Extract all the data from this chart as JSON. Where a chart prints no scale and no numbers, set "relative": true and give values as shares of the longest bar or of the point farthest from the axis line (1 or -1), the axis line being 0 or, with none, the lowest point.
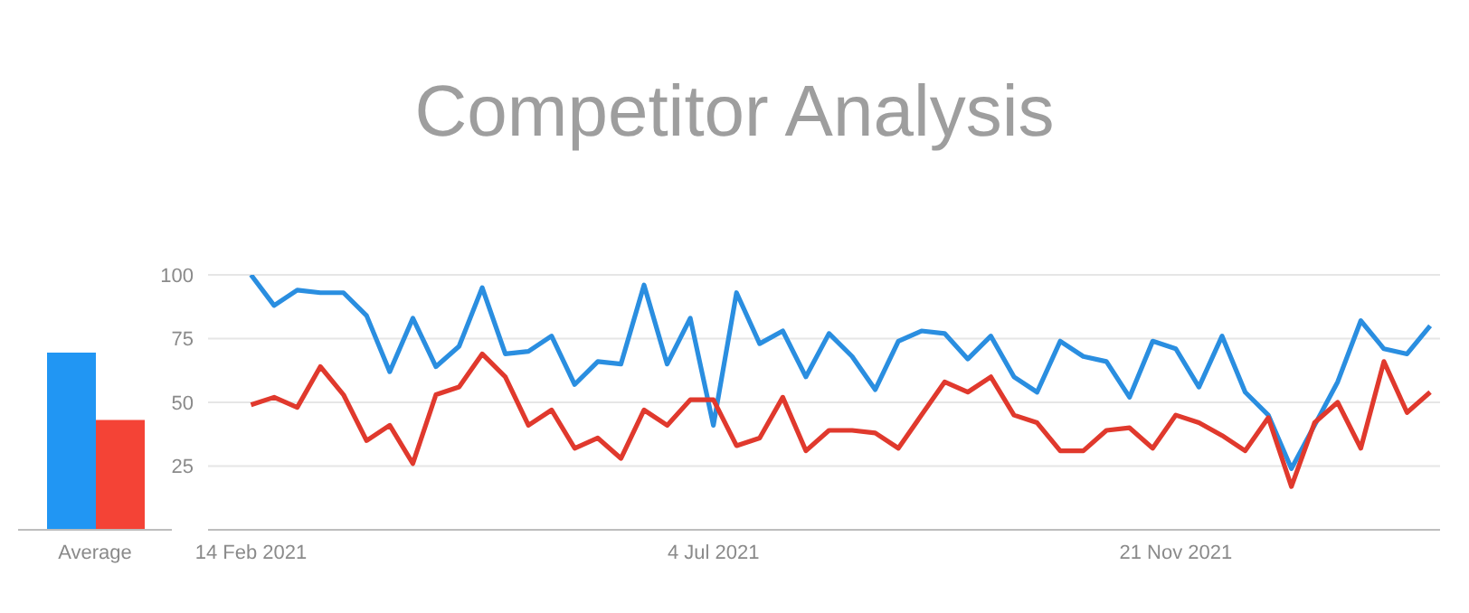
{
  "chart_data": [
    {
      "type": "bar",
      "relative": true,
      "categories": [
        "Average"
      ],
      "series": [
        {
          "color": "#2196f3",
          "values": [
            1
          ]
        },
        {
          "color": "#f44336",
          "values": [
            0.62
          ]
        }
      ]
    },
    {
      "type": "line",
      "title": "Competitor Analysis",
      "x": [
        "2021-02-14",
        "2021-02-21",
        "2021-02-28",
        "2021-03-07",
        "2021-03-14",
        "2021-03-21",
        "2021-03-28",
        "2021-04-04",
        "2021-04-11",
        "2021-04-18",
        "2021-04-25",
        "2021-05-02",
        "2021-05-09",
        "2021-05-16",
        "2021-05-23",
        "2021-05-30",
        "2021-06-06",
        "2021-06-13",
        "2021-06-20",
        "2021-06-27",
        "2021-07-04",
        "2021-07-11",
        "2021-07-18",
        "2021-07-25",
        "2021-08-01",
        "2021-08-08",
        "2021-08-15",
        "2021-08-22",
        "2021-08-29",
        "2021-09-05",
        "2021-09-12",
        "2021-09-19",
        "2021-09-26",
        "2021-10-03",
        "2021-10-10",
        "2021-10-17",
        "2021-10-24",
        "2021-10-31",
        "2021-11-07",
        "2021-11-14",
        "2021-11-21",
        "2021-11-28",
        "2021-12-05",
        "2021-12-12",
        "2021-12-19",
        "2021-12-26",
        "2022-01-02",
        "2022-01-09",
        "2022-01-16",
        "2022-01-23",
        "2022-01-30",
        "2022-02-06"
      ],
      "series": [
        {
          "color": "#2a8ee0",
          "values": [
            100,
            88,
            94,
            93,
            93,
            84,
            62,
            83,
            64,
            72,
            95,
            69,
            70,
            76,
            57,
            66,
            65,
            96,
            65,
            83,
            41,
            93,
            73,
            78,
            60,
            77,
            68,
            55,
            74,
            78,
            77,
            67,
            76,
            60,
            54,
            74,
            68,
            66,
            52,
            74,
            71,
            56,
            76,
            54,
            45,
            24,
            41,
            58,
            82,
            71,
            69,
            80
          ]
        },
        {
          "color": "#e0392d",
          "values": [
            49,
            52,
            48,
            64,
            53,
            35,
            41,
            26,
            53,
            56,
            69,
            60,
            41,
            47,
            32,
            36,
            28,
            47,
            41,
            51,
            51,
            33,
            36,
            52,
            31,
            39,
            39,
            38,
            32,
            45,
            58,
            54,
            60,
            45,
            42,
            31,
            31,
            39,
            40,
            32,
            45,
            42,
            37,
            31,
            44,
            17,
            42,
            50,
            32,
            66,
            46,
            54
          ]
        }
      ],
      "xlim": [
        "2021-02-01",
        "2022-02-09"
      ],
      "xticks": [
        {
          "value": "2021-02-14",
          "label": "14 Feb 2021"
        },
        {
          "value": "2021-07-04",
          "label": "4 Jul 2021"
        },
        {
          "value": "2021-11-21",
          "label": "21 Nov 2021"
        }
      ],
      "ylim": [
        0,
        100
      ],
      "yticks": [
        25,
        50,
        75,
        100
      ],
      "grid": "y"
    }
  ]
}
